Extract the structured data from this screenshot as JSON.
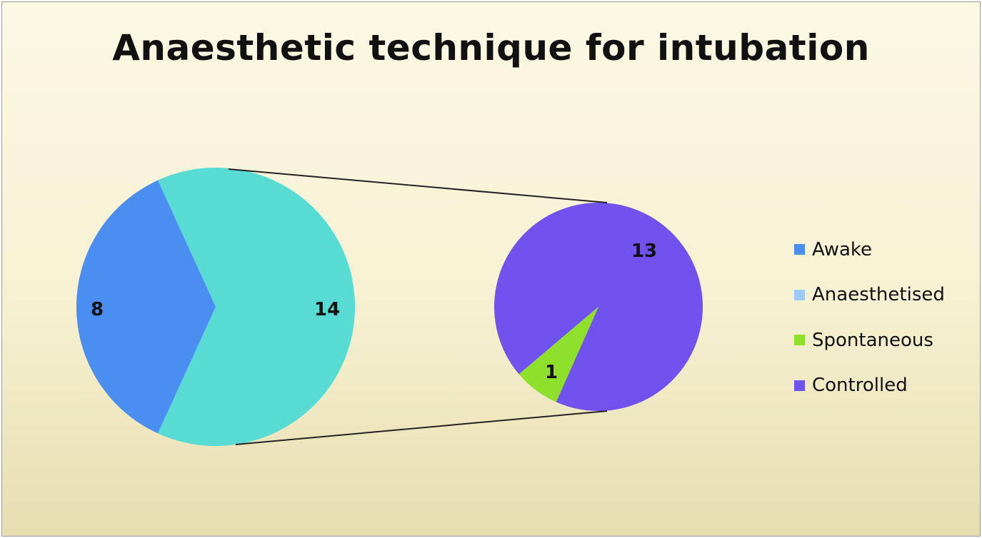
{
  "chart_data": {
    "type": "pie-of-pie",
    "title": "Anaesthetic technique for intubation",
    "primary": {
      "slices": [
        {
          "name": "Awake",
          "value": 8,
          "color": "#4a8ef2"
        },
        {
          "name": "Anaesthetised",
          "value": 14,
          "color": "#58dbd3"
        }
      ]
    },
    "secondary": {
      "parent": "Anaesthetised",
      "slices": [
        {
          "name": "Spontaneous",
          "value": 1,
          "color": "#8ee02a"
        },
        {
          "name": "Controlled",
          "value": 13,
          "color": "#7052ec"
        }
      ]
    },
    "legend": {
      "placement": "right",
      "entries": [
        {
          "label": "Awake",
          "color": "#4a8ef2"
        },
        {
          "label": "Anaesthetised",
          "color": "#9ccaf8"
        },
        {
          "label": "Spontaneous",
          "color": "#8ee02a"
        },
        {
          "label": "Controlled",
          "color": "#7052ec"
        }
      ]
    }
  }
}
